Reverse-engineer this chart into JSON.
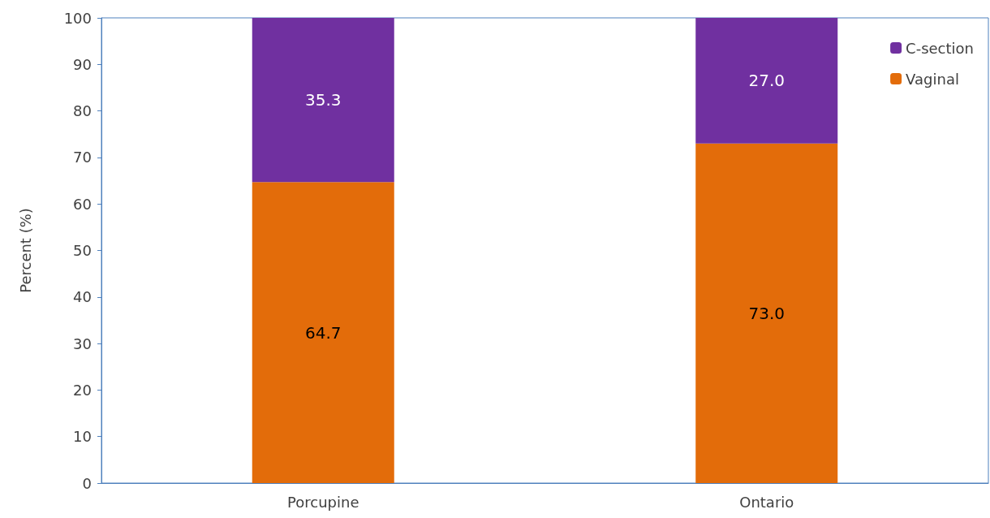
{
  "chart_data": {
    "type": "bar",
    "stacked": true,
    "ylabel": "Percent (%)",
    "categories": [
      "Porcupine",
      "Ontario"
    ],
    "series": [
      {
        "name": "Vaginal",
        "color": "#e36c0a",
        "values": [
          64.7,
          73.0
        ],
        "value_labels": [
          "64.7",
          "73.0"
        ]
      },
      {
        "name": "C-section",
        "color": "#7030a0",
        "values": [
          35.3,
          27.0
        ],
        "value_labels": [
          "35.3",
          "27.0"
        ]
      }
    ],
    "ylim": [
      0,
      100
    ],
    "yticks": [
      0,
      10,
      20,
      30,
      40,
      50,
      60,
      70,
      80,
      90,
      100
    ],
    "grid": false,
    "legend": "top right"
  }
}
